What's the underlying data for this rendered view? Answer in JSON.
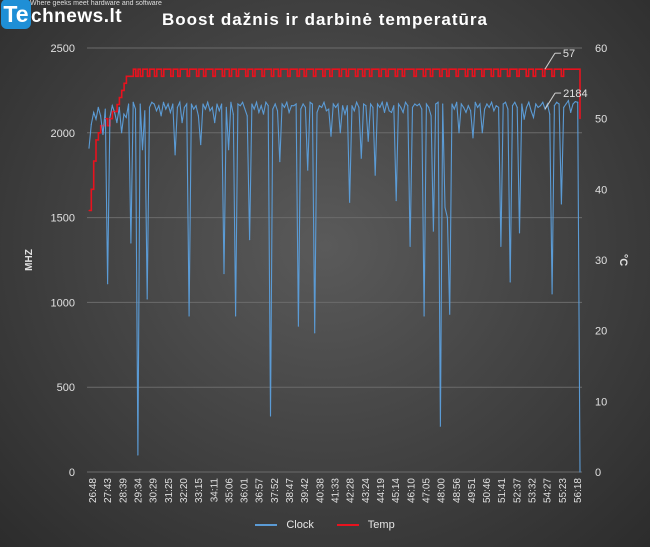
{
  "logo": {
    "te": "Te",
    "name": "chnews.lt",
    "tagline": "Where geeks meet hardware and software"
  },
  "colors": {
    "clock": "#5b9bd5",
    "temp": "#e8121e",
    "grid": "#6b6b6b",
    "text": "#e0e0e0"
  },
  "chart_data": {
    "type": "line",
    "title": "Boost dažnis ir darbinė temperatūra",
    "ylabel": "MHZ",
    "y2label": "°C",
    "ylim": [
      0,
      2500
    ],
    "y2lim": [
      0,
      60
    ],
    "yticks": [
      0,
      500,
      1000,
      1500,
      2000,
      2500
    ],
    "y2ticks": [
      0,
      10,
      20,
      30,
      40,
      50,
      60
    ],
    "grid": true,
    "legend_position": "bottom",
    "x_tick_labels": [
      "26:48",
      "27:43",
      "28:39",
      "29:34",
      "30:29",
      "31:25",
      "32:20",
      "33:15",
      "34:11",
      "35:06",
      "36:01",
      "36:57",
      "37:52",
      "38:47",
      "39:42",
      "40:38",
      "41:33",
      "42:28",
      "43:24",
      "44:19",
      "45:14",
      "46:10",
      "47:05",
      "48:00",
      "48:56",
      "49:51",
      "50:46",
      "51:41",
      "52:37",
      "53:32",
      "54:27",
      "55:23",
      "56:18"
    ],
    "series": [
      {
        "name": "Clock",
        "axis": "left",
        "values": [
          1910,
          2050,
          2120,
          2080,
          2150,
          2100,
          1990,
          2140,
          1110,
          2090,
          2160,
          2120,
          2060,
          2150,
          2000,
          2110,
          2090,
          2170,
          1350,
          2180,
          2140,
          100,
          2170,
          1900,
          2130,
          1020,
          2150,
          2180,
          2170,
          2130,
          2160,
          2100,
          2180,
          2140,
          2170,
          2120,
          2170,
          1870,
          2150,
          2180,
          2060,
          2150,
          2170,
          920,
          2170,
          2140,
          2160,
          2100,
          1930,
          2170,
          2140,
          2180,
          2130,
          2150,
          2060,
          2170,
          2130,
          2170,
          1170,
          2150,
          1900,
          2180,
          2110,
          920,
          2170,
          2160,
          2180,
          2140,
          2100,
          1370,
          2170,
          2140,
          2180,
          2120,
          2160,
          2110,
          2180,
          2160,
          330,
          2140,
          2170,
          2130,
          1830,
          2170,
          2150,
          2180,
          2120,
          2160,
          2160,
          2170,
          860,
          2140,
          2170,
          2150,
          1780,
          2180,
          2170,
          820,
          2120,
          2160,
          2150,
          2180,
          2130,
          2140,
          1980,
          2170,
          2150,
          2170,
          2000,
          2160,
          2110,
          2160,
          1590,
          2160,
          2130,
          2180,
          2150,
          1850,
          2170,
          2160,
          1950,
          2170,
          2150,
          1750,
          2170,
          2150,
          2180,
          2120,
          2180,
          2130,
          2120,
          2160,
          1600,
          2170,
          2150,
          2120,
          2180,
          2160,
          1330,
          2150,
          2170,
          2160,
          2170,
          2140,
          920,
          2170,
          2150,
          2100,
          1420,
          2170,
          2180,
          270,
          2170,
          1560,
          1500,
          930,
          2170,
          2140,
          2180,
          2000,
          2170,
          2150,
          2120,
          2160,
          2130,
          1970,
          2180,
          2150,
          2170,
          2000,
          2140,
          2170,
          2150,
          2180,
          2130,
          2160,
          2150,
          1330,
          2170,
          2180,
          2140,
          1120,
          2160,
          2180,
          2150,
          1410,
          2170,
          2080,
          2150,
          2180,
          2130,
          2090,
          2170,
          2150,
          2160,
          2180,
          2140,
          2170,
          2110,
          1050,
          2160,
          2180,
          2170,
          1580,
          2150,
          2170,
          2190,
          2120,
          2170,
          2184,
          2180,
          0
        ]
      },
      {
        "name": "Temp",
        "axis": "right",
        "values": [
          37,
          40,
          44,
          47,
          48,
          49,
          49,
          50,
          49,
          50,
          51,
          51,
          52,
          53,
          54,
          55,
          56,
          56,
          56,
          57,
          56,
          57,
          56,
          57,
          57,
          56,
          57,
          57,
          56,
          57,
          57,
          56,
          57,
          57,
          57,
          56,
          57,
          57,
          56,
          57,
          57,
          57,
          56,
          57,
          57,
          57,
          56,
          57,
          57,
          56,
          57,
          57,
          57,
          56,
          57,
          57,
          57,
          56,
          57,
          57,
          56,
          57,
          57,
          56,
          57,
          57,
          57,
          56,
          57,
          57,
          56,
          57,
          57,
          57,
          56,
          57,
          57,
          57,
          56,
          57,
          57,
          56,
          57,
          57,
          57,
          56,
          57,
          57,
          57,
          56,
          57,
          57,
          56,
          57,
          57,
          57,
          56,
          57,
          57,
          57,
          56,
          57,
          57,
          56,
          57,
          57,
          57,
          56,
          57,
          57,
          56,
          57,
          57,
          57,
          56,
          57,
          57,
          56,
          57,
          57,
          56,
          57,
          57,
          57,
          56,
          57,
          57,
          56,
          57,
          57,
          57,
          56,
          57,
          57,
          56,
          57,
          57,
          57,
          57,
          56,
          57,
          57,
          57,
          56,
          57,
          57,
          56,
          57,
          57,
          57,
          56,
          57,
          57,
          56,
          57,
          57,
          57,
          56,
          57,
          57,
          57,
          56,
          57,
          57,
          56,
          57,
          57,
          57,
          56,
          57,
          57,
          57,
          56,
          57,
          57,
          56,
          57,
          57,
          57,
          56,
          57,
          57,
          57,
          56,
          57,
          57,
          57,
          56,
          57,
          57,
          56,
          57,
          57,
          57,
          56,
          57,
          57,
          57,
          56,
          57,
          57,
          57,
          56,
          57,
          57,
          57,
          57,
          57,
          57,
          57,
          50
        ]
      }
    ],
    "annotations": [
      {
        "text": "57",
        "series": "Temp",
        "index": 195
      },
      {
        "text": "2184",
        "series": "Clock",
        "index": 196
      }
    ]
  }
}
